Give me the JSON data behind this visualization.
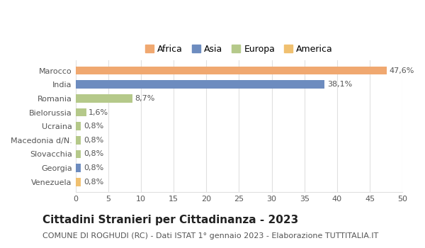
{
  "categories": [
    "Venezuela",
    "Georgia",
    "Slovacchia",
    "Macedonia d/N.",
    "Ucraina",
    "Bielorussia",
    "Romania",
    "India",
    "Marocco"
  ],
  "values": [
    0.8,
    0.8,
    0.8,
    0.8,
    0.8,
    1.6,
    8.7,
    38.1,
    47.6
  ],
  "labels": [
    "0,8%",
    "0,8%",
    "0,8%",
    "0,8%",
    "0,8%",
    "1,6%",
    "8,7%",
    "38,1%",
    "47,6%"
  ],
  "colors": [
    "#f0c070",
    "#6d8cbf",
    "#b5c98a",
    "#b5c98a",
    "#b5c98a",
    "#b5c98a",
    "#b5c98a",
    "#6d8cbf",
    "#f0a870"
  ],
  "continents": [
    "America",
    "Asia",
    "Europa",
    "Europa",
    "Europa",
    "Europa",
    "Europa",
    "Asia",
    "Africa"
  ],
  "legend_labels": [
    "Africa",
    "Asia",
    "Europa",
    "America"
  ],
  "legend_colors": [
    "#f0a870",
    "#6d8cbf",
    "#b5c98a",
    "#f0c070"
  ],
  "title": "Cittadini Stranieri per Cittadinanza - 2023",
  "subtitle": "COMUNE DI ROGHUDI (RC) - Dati ISTAT 1° gennaio 2023 - Elaborazione TUTTITALIA.IT",
  "xlim": [
    0,
    50
  ],
  "xticks": [
    0,
    5,
    10,
    15,
    20,
    25,
    30,
    35,
    40,
    45,
    50
  ],
  "bar_height": 0.6,
  "bg_color": "#ffffff",
  "grid_color": "#e0e0e0",
  "title_fontsize": 11,
  "subtitle_fontsize": 8,
  "label_fontsize": 8,
  "tick_fontsize": 8,
  "legend_fontsize": 9
}
